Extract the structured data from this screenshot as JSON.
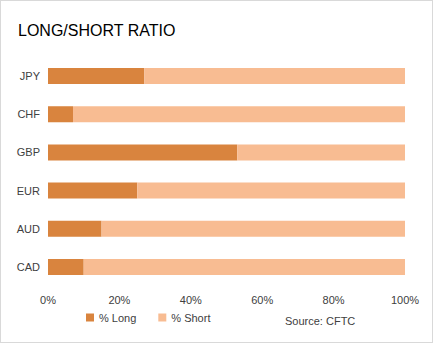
{
  "chart_data": {
    "type": "bar",
    "orientation": "horizontal",
    "stacked": true,
    "title": "LONG/SHORT RATIO",
    "annotations": [
      "Source: CFTC"
    ],
    "categories": [
      "JPY",
      "CHF",
      "GBP",
      "EUR",
      "AUD",
      "CAD"
    ],
    "series": [
      {
        "name": "% Long",
        "color": "#d9843e",
        "values": [
          27,
          7,
          53,
          25,
          15,
          10
        ]
      },
      {
        "name": "% Short",
        "color": "#f8bc92",
        "values": [
          73,
          93,
          47,
          75,
          85,
          90
        ]
      }
    ],
    "xlim": [
      0,
      100
    ],
    "xticks": [
      {
        "value": 0,
        "label": "0%"
      },
      {
        "value": 20,
        "label": "20%"
      },
      {
        "value": 40,
        "label": "40%"
      },
      {
        "value": 60,
        "label": "60%"
      },
      {
        "value": 80,
        "label": "80%"
      },
      {
        "value": 100,
        "label": "100%"
      }
    ],
    "grid": false,
    "legend": "bottom-left"
  }
}
